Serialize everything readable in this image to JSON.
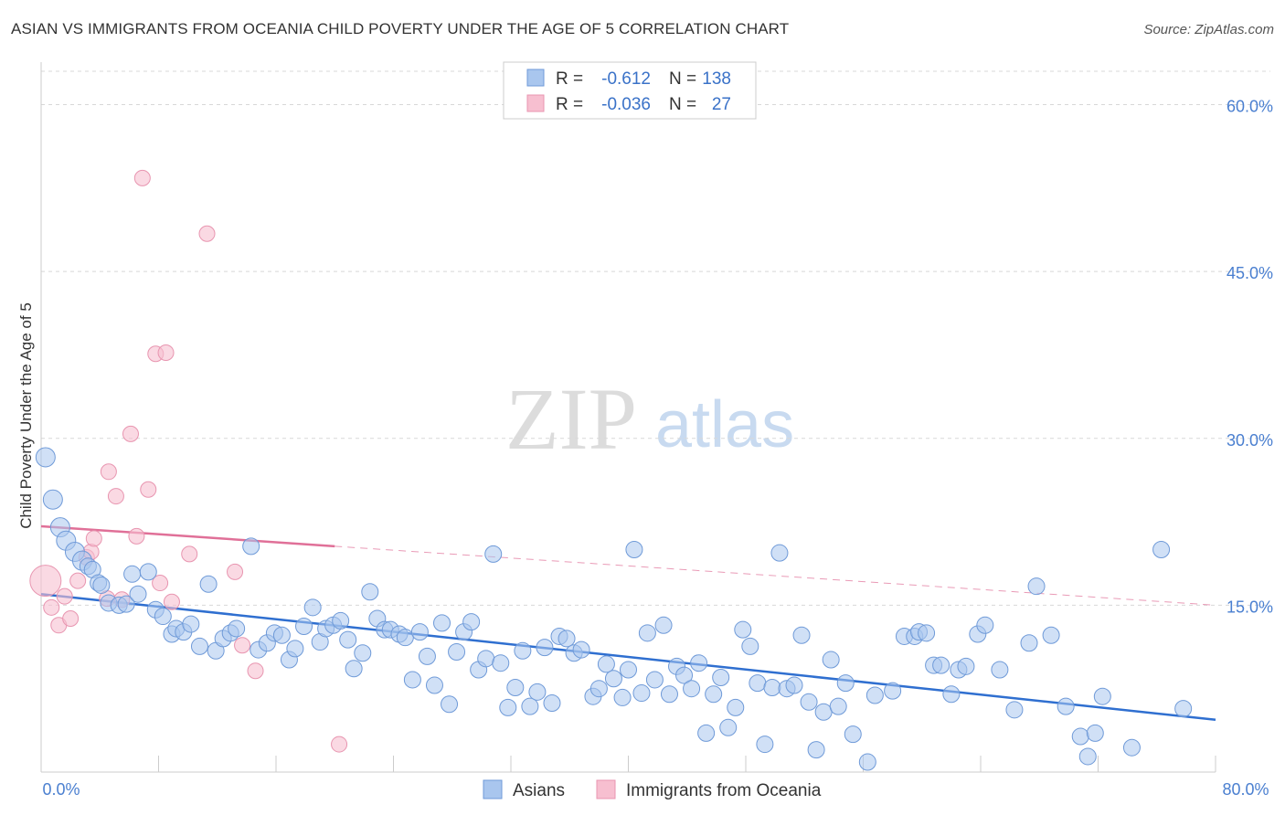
{
  "title": "ASIAN VS IMMIGRANTS FROM OCEANIA CHILD POVERTY UNDER THE AGE OF 5 CORRELATION CHART",
  "source": "Source: ZipAtlas.com",
  "watermark": {
    "part1": "ZIP",
    "part2": "atlas"
  },
  "colors": {
    "asian_fill": "#a9c6ee",
    "asian_stroke": "#6f9ad8",
    "asian_line": "#2f6fd0",
    "oceania_fill": "#f7bfd0",
    "oceania_stroke": "#e895b0",
    "oceania_line": "#e07098",
    "grid": "#d8d8d8",
    "tick_label": "#4a7fd0"
  },
  "stats": {
    "r_label": "R =",
    "n_label": "N =",
    "rows": [
      {
        "series": "Asians",
        "r": "-0.612",
        "n": "138"
      },
      {
        "series": "Immigrants from Oceania",
        "r": "-0.036",
        "n": "27"
      }
    ]
  },
  "chart_data": {
    "type": "scatter",
    "title": "ASIAN VS IMMIGRANTS FROM OCEANIA CHILD POVERTY UNDER THE AGE OF 5 CORRELATION CHART",
    "xlabel": "",
    "ylabel": "Child Poverty Under the Age of 5",
    "xlim": [
      0,
      80
    ],
    "ylim": [
      0,
      63
    ],
    "x_tick_labels": [
      {
        "value": 0,
        "label": "0.0%"
      },
      {
        "value": 80,
        "label": "80.0%"
      }
    ],
    "y_tick_labels": [
      {
        "value": 15,
        "label": "15.0%"
      },
      {
        "value": 30,
        "label": "30.0%"
      },
      {
        "value": 45,
        "label": "45.0%"
      },
      {
        "value": 60,
        "label": "60.0%"
      }
    ],
    "grid": true,
    "legend_position": "bottom-center",
    "series": [
      {
        "name": "Asians",
        "trend": {
          "x": [
            0,
            80
          ],
          "y": [
            16.0,
            4.7
          ]
        },
        "points": [
          [
            0.3,
            28.3
          ],
          [
            0.8,
            24.5
          ],
          [
            1.3,
            22.0
          ],
          [
            1.7,
            20.8
          ],
          [
            2.3,
            19.8
          ],
          [
            2.8,
            19.0
          ],
          [
            3.2,
            18.5
          ],
          [
            3.5,
            18.2
          ],
          [
            3.9,
            17.0
          ],
          [
            4.1,
            16.8
          ],
          [
            4.6,
            15.2
          ],
          [
            5.3,
            15.0
          ],
          [
            5.8,
            15.1
          ],
          [
            6.2,
            17.8
          ],
          [
            6.6,
            16.0
          ],
          [
            7.3,
            18.0
          ],
          [
            7.8,
            14.6
          ],
          [
            8.3,
            14.0
          ],
          [
            8.9,
            12.4
          ],
          [
            9.2,
            12.9
          ],
          [
            9.7,
            12.6
          ],
          [
            10.2,
            13.3
          ],
          [
            10.8,
            11.3
          ],
          [
            11.4,
            16.9
          ],
          [
            11.9,
            10.9
          ],
          [
            12.4,
            12.0
          ],
          [
            12.9,
            12.5
          ],
          [
            13.3,
            12.9
          ],
          [
            14.3,
            20.3
          ],
          [
            14.8,
            11.0
          ],
          [
            15.4,
            11.6
          ],
          [
            15.9,
            12.5
          ],
          [
            16.4,
            12.3
          ],
          [
            16.9,
            10.1
          ],
          [
            17.3,
            11.1
          ],
          [
            17.9,
            13.1
          ],
          [
            18.5,
            14.8
          ],
          [
            19.0,
            11.7
          ],
          [
            19.4,
            12.9
          ],
          [
            19.9,
            13.2
          ],
          [
            20.4,
            13.6
          ],
          [
            20.9,
            11.9
          ],
          [
            21.3,
            9.3
          ],
          [
            21.9,
            10.7
          ],
          [
            22.4,
            16.2
          ],
          [
            22.9,
            13.8
          ],
          [
            23.4,
            12.8
          ],
          [
            23.8,
            12.8
          ],
          [
            24.4,
            12.4
          ],
          [
            24.8,
            12.1
          ],
          [
            25.3,
            8.3
          ],
          [
            25.8,
            12.6
          ],
          [
            26.3,
            10.4
          ],
          [
            26.8,
            7.8
          ],
          [
            27.3,
            13.4
          ],
          [
            27.8,
            6.1
          ],
          [
            28.3,
            10.8
          ],
          [
            28.8,
            12.6
          ],
          [
            29.3,
            13.5
          ],
          [
            29.8,
            9.2
          ],
          [
            30.3,
            10.2
          ],
          [
            30.8,
            19.6
          ],
          [
            31.3,
            9.8
          ],
          [
            31.8,
            5.8
          ],
          [
            32.3,
            7.6
          ],
          [
            32.8,
            10.9
          ],
          [
            33.3,
            5.9
          ],
          [
            33.8,
            7.2
          ],
          [
            34.3,
            11.2
          ],
          [
            34.8,
            6.2
          ],
          [
            35.3,
            12.2
          ],
          [
            35.8,
            12.0
          ],
          [
            36.3,
            10.7
          ],
          [
            36.8,
            11.0
          ],
          [
            37.6,
            6.8
          ],
          [
            38.0,
            7.5
          ],
          [
            38.5,
            9.7
          ],
          [
            39.0,
            8.4
          ],
          [
            39.6,
            6.7
          ],
          [
            40.0,
            9.2
          ],
          [
            40.4,
            20.0
          ],
          [
            40.9,
            7.1
          ],
          [
            41.3,
            12.5
          ],
          [
            41.8,
            8.3
          ],
          [
            42.4,
            13.2
          ],
          [
            42.8,
            7.0
          ],
          [
            43.3,
            9.5
          ],
          [
            43.8,
            8.7
          ],
          [
            44.3,
            7.5
          ],
          [
            44.8,
            9.8
          ],
          [
            45.3,
            3.5
          ],
          [
            45.8,
            7.0
          ],
          [
            46.3,
            8.5
          ],
          [
            46.8,
            4.0
          ],
          [
            47.3,
            5.8
          ],
          [
            47.8,
            12.8
          ],
          [
            48.3,
            11.3
          ],
          [
            48.8,
            8.0
          ],
          [
            49.3,
            2.5
          ],
          [
            49.8,
            7.6
          ],
          [
            50.3,
            19.7
          ],
          [
            50.8,
            7.5
          ],
          [
            51.3,
            7.8
          ],
          [
            51.8,
            12.3
          ],
          [
            52.3,
            6.3
          ],
          [
            52.8,
            2.0
          ],
          [
            53.3,
            5.4
          ],
          [
            53.8,
            10.1
          ],
          [
            54.3,
            5.9
          ],
          [
            54.8,
            8.0
          ],
          [
            55.3,
            3.4
          ],
          [
            56.3,
            0.9
          ],
          [
            56.8,
            6.9
          ],
          [
            58.0,
            7.3
          ],
          [
            58.8,
            12.2
          ],
          [
            59.5,
            12.2
          ],
          [
            59.8,
            12.6
          ],
          [
            60.3,
            12.5
          ],
          [
            60.8,
            9.6
          ],
          [
            61.3,
            9.6
          ],
          [
            62.0,
            7.0
          ],
          [
            62.5,
            9.2
          ],
          [
            63.0,
            9.5
          ],
          [
            63.8,
            12.4
          ],
          [
            64.3,
            13.2
          ],
          [
            65.3,
            9.2
          ],
          [
            66.3,
            5.6
          ],
          [
            67.3,
            11.6
          ],
          [
            67.8,
            16.7
          ],
          [
            68.8,
            12.3
          ],
          [
            69.8,
            5.9
          ],
          [
            70.8,
            3.2
          ],
          [
            71.3,
            1.4
          ],
          [
            71.8,
            3.5
          ],
          [
            72.3,
            6.8
          ],
          [
            74.3,
            2.2
          ],
          [
            76.3,
            20.0
          ],
          [
            77.8,
            5.7
          ]
        ]
      },
      {
        "name": "Immigrants from Oceania",
        "trend": {
          "x": [
            0,
            20
          ],
          "y": [
            22.1,
            20.3
          ]
        },
        "trend_extension": {
          "x": [
            20,
            80
          ],
          "y": [
            20.3,
            15.0
          ]
        },
        "points": [
          [
            0.3,
            17.2
          ],
          [
            0.7,
            14.8
          ],
          [
            1.2,
            13.2
          ],
          [
            1.6,
            15.8
          ],
          [
            2.0,
            13.8
          ],
          [
            2.5,
            17.2
          ],
          [
            3.1,
            19.3
          ],
          [
            3.4,
            19.8
          ],
          [
            3.6,
            21.0
          ],
          [
            4.5,
            15.6
          ],
          [
            4.6,
            27.0
          ],
          [
            5.1,
            24.8
          ],
          [
            5.5,
            15.5
          ],
          [
            6.1,
            30.4
          ],
          [
            6.5,
            21.2
          ],
          [
            6.9,
            53.4
          ],
          [
            7.3,
            25.4
          ],
          [
            7.8,
            37.6
          ],
          [
            8.1,
            17.0
          ],
          [
            8.5,
            37.7
          ],
          [
            8.9,
            15.3
          ],
          [
            10.1,
            19.6
          ],
          [
            11.3,
            48.4
          ],
          [
            13.2,
            18.0
          ],
          [
            13.7,
            11.4
          ],
          [
            14.6,
            9.1
          ],
          [
            20.3,
            2.5
          ]
        ]
      }
    ]
  },
  "legend": [
    {
      "label": "Asians",
      "key": "asian"
    },
    {
      "label": "Immigrants from Oceania",
      "key": "oceania"
    }
  ]
}
